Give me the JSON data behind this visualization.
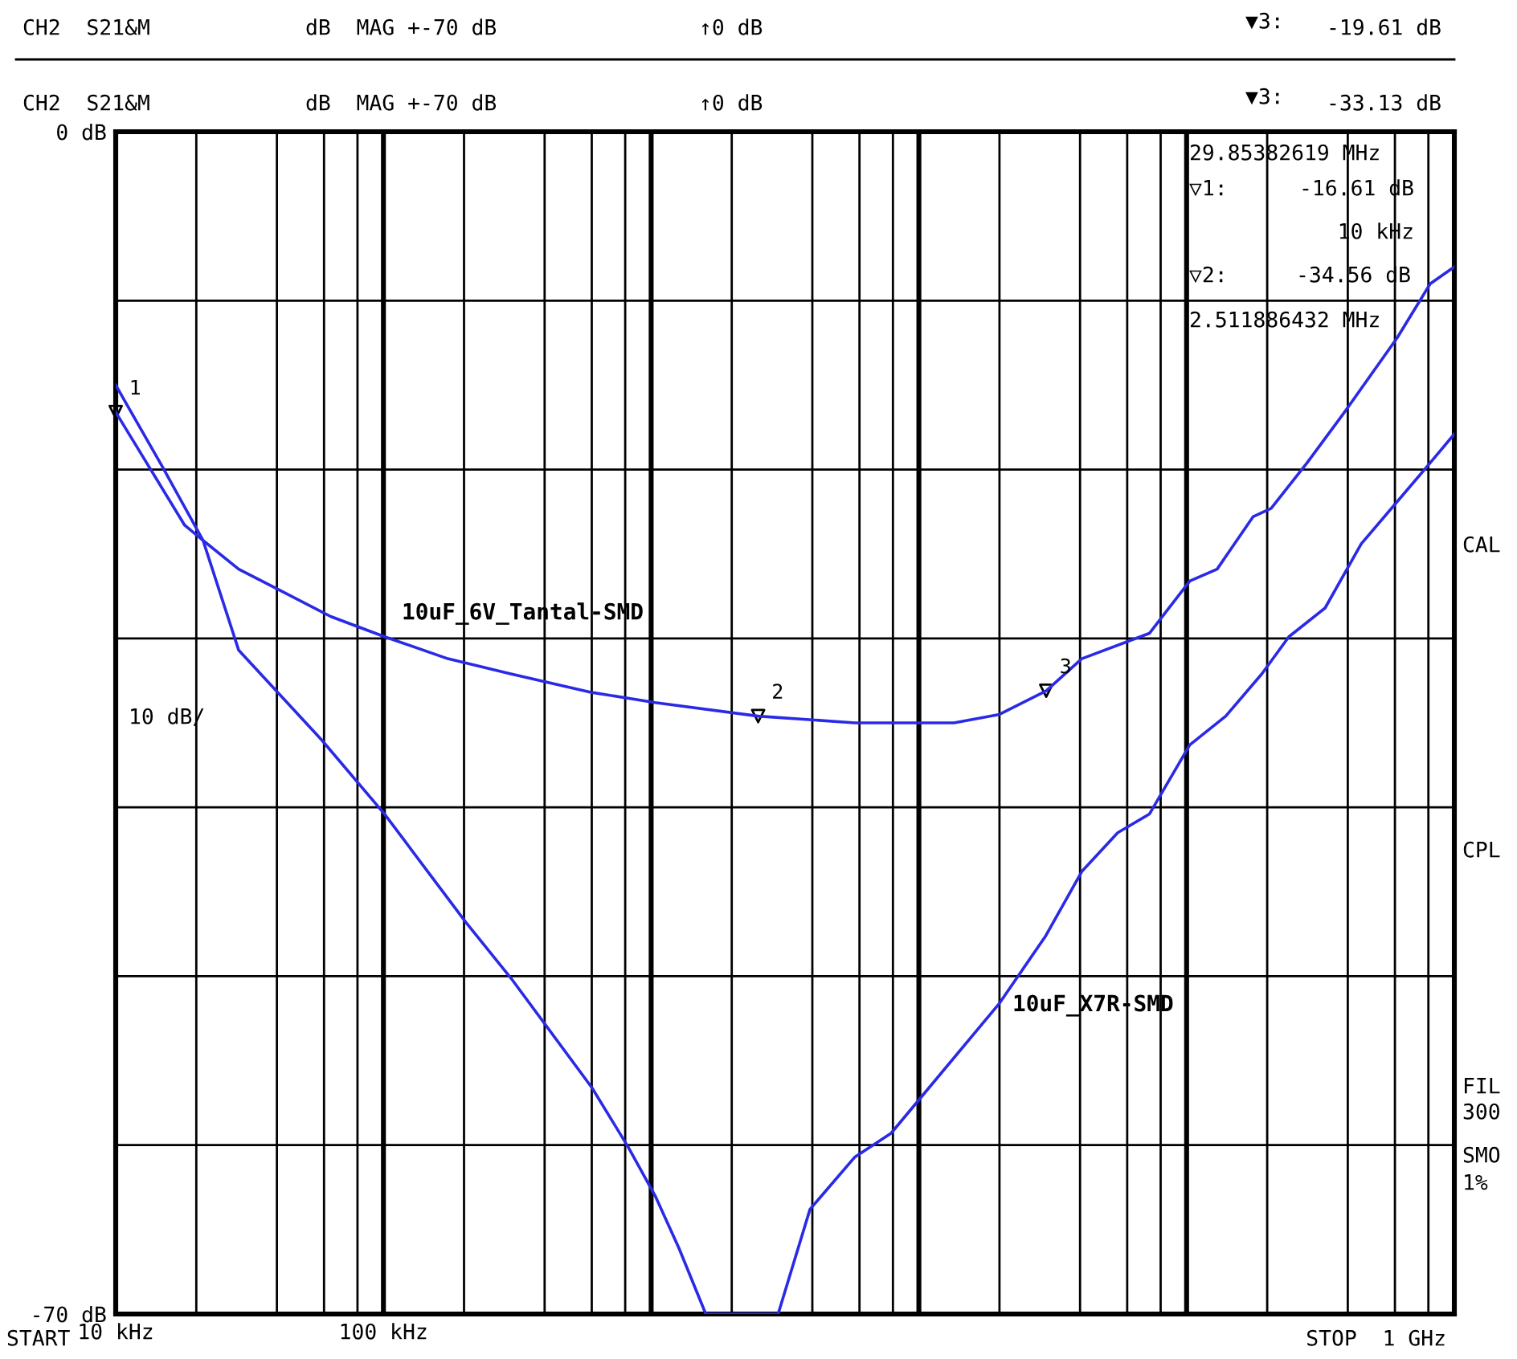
{
  "chart_data": {
    "type": "line",
    "annotations": [
      "CH2  S21&M",
      "dB  MAG +-70 dB",
      "↑0 dB",
      "▼3:",
      "-19.61 dB",
      "CH2  S21&M",
      "dB  MAG +-70 dB",
      "↑0 dB",
      "▼3:",
      "-33.13 dB",
      "29.85382619 MHz",
      "▽1:",
      "-16.61 dB",
      "10 kHz",
      "▽2:",
      "-34.56 dB",
      "2.511886432 MHz",
      "START",
      "STOP  1 GHz",
      "CAL",
      "CPL",
      "FIL",
      "300",
      "SMO",
      "1%",
      {
        "text": "1",
        "x": 10,
        "y": -16.6
      },
      {
        "text": "2",
        "x": 2510,
        "y": -34.6
      },
      {
        "text": "3",
        "x": 29900,
        "y": -33.1
      }
    ],
    "ylabel": "10 dB/",
    "log": "x",
    "grid": true,
    "xlim": [
      10,
      1000000
    ],
    "xticks": [
      {
        "value": 10,
        "label": "10 kHz"
      },
      {
        "value": 20,
        "label": null
      },
      {
        "value": 40,
        "label": null
      },
      {
        "value": 60,
        "label": null
      },
      {
        "value": 80,
        "label": null
      },
      {
        "value": 100,
        "label": "100 kHz"
      },
      {
        "value": 200,
        "label": null
      },
      {
        "value": 400,
        "label": null
      },
      {
        "value": 600,
        "label": null
      },
      {
        "value": 800,
        "label": null
      },
      {
        "value": 1000,
        "label": null
      },
      {
        "value": 2000,
        "label": null
      },
      {
        "value": 4000,
        "label": null
      },
      {
        "value": 6000,
        "label": null
      },
      {
        "value": 8000,
        "label": null
      },
      {
        "value": 10000,
        "label": null
      },
      {
        "value": 20000,
        "label": null
      },
      {
        "value": 40000,
        "label": null
      },
      {
        "value": 60000,
        "label": null
      },
      {
        "value": 80000,
        "label": null
      },
      {
        "value": 100000,
        "label": null
      },
      {
        "value": 200000,
        "label": null
      },
      {
        "value": 400000,
        "label": null
      },
      {
        "value": 600000,
        "label": null
      },
      {
        "value": 800000,
        "label": null
      }
    ],
    "ylim": [
      -70,
      0
    ],
    "yticks": [
      {
        "value": 0,
        "label": "0 dB"
      },
      {
        "value": -10,
        "label": null
      },
      {
        "value": -20,
        "label": null
      },
      {
        "value": -30,
        "label": null
      },
      {
        "value": -40,
        "label": null
      },
      {
        "value": -50,
        "label": null
      },
      {
        "value": -60,
        "label": null
      },
      {
        "value": -70,
        "label": "-70 dB"
      }
    ],
    "series": [
      {
        "name": "10uF_6V_Tantal-SMD",
        "color": "#2a2ae6",
        "x": [
          10,
          18.1,
          21.2,
          28.8,
          39.4,
          63.5,
          101,
          174,
          299,
          601,
          1035,
          2510,
          5770,
          13520,
          20000,
          29900,
          40600,
          72600,
          102800,
          130000,
          177000,
          207000,
          282000,
          385000,
          612000,
          813000,
          1000000
        ],
        "values": [
          -16.6,
          -23.3,
          -24.2,
          -25.9,
          -27.0,
          -28.7,
          -29.9,
          -31.2,
          -32.1,
          -33.2,
          -33.8,
          -34.6,
          -35.0,
          -35.0,
          -34.5,
          -33.1,
          -31.2,
          -29.7,
          -26.6,
          -25.9,
          -22.8,
          -22.3,
          -19.6,
          -16.7,
          -12.2,
          -9.0,
          -8.0
        ]
      },
      {
        "name": "10uF_X7R-SMD",
        "color": "#2a2ae6",
        "x": [
          10,
          14.9,
          21.2,
          28.8,
          58.7,
          101,
          203,
          299,
          601,
          820,
          1035,
          1270,
          1600,
          2980,
          3920,
          5770,
          7870,
          20000,
          29800,
          40600,
          55300,
          72600,
          102800,
          140000,
          191000,
          241000,
          329000,
          449000,
          612000,
          813000,
          1000000
        ],
        "values": [
          -15.0,
          -19.8,
          -24.2,
          -30.7,
          -36.0,
          -40.4,
          -46.8,
          -50.1,
          -56.6,
          -60.1,
          -63.0,
          -66.1,
          -70,
          -70,
          -63.8,
          -60.7,
          -59.3,
          -51.6,
          -47.6,
          -43.8,
          -41.5,
          -40.4,
          -36.3,
          -34.6,
          -32.1,
          -29.9,
          -28.2,
          -24.4,
          -21.9,
          -19.6,
          -17.9
        ]
      }
    ]
  }
}
